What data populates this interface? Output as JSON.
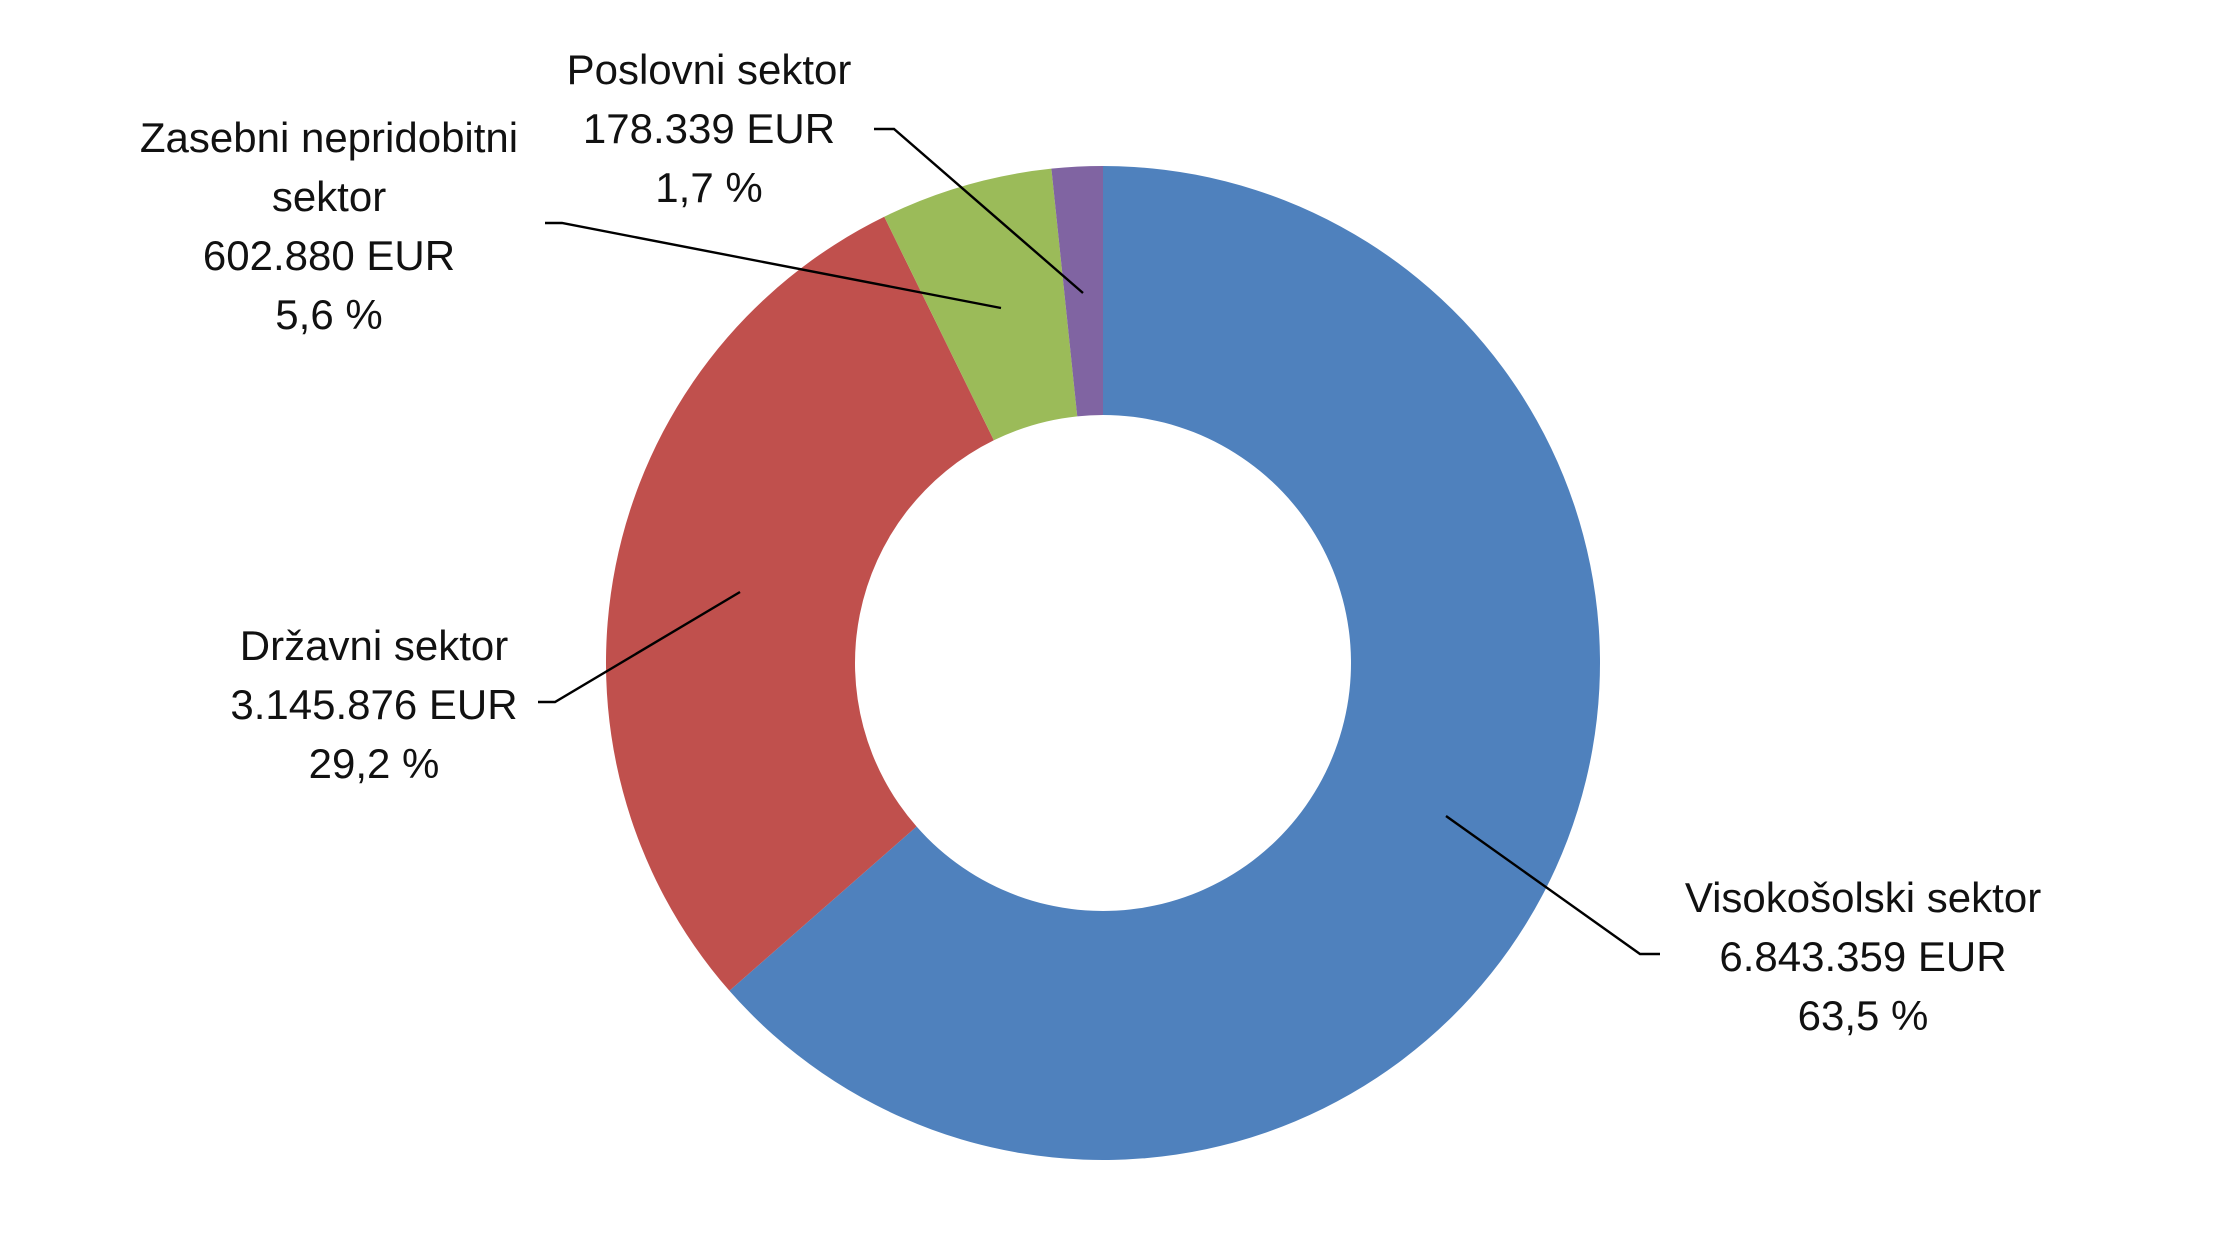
{
  "chart_data": {
    "type": "pie",
    "variant": "doughnut",
    "title": "",
    "legend": "none",
    "colors": {
      "visokosolski": "#4F81BD",
      "drzavni": "#C0504D",
      "zasebni": "#9BBB59",
      "poslovni": "#8064A2"
    },
    "slices": [
      {
        "key": "visokosolski",
        "lines": [
          "Visokošolski sektor"
        ],
        "value": 6843359,
        "value_label": "6.843.359 EUR",
        "percent_label": "63,5 %"
      },
      {
        "key": "drzavni",
        "lines": [
          "Državni sektor"
        ],
        "value": 3145876,
        "value_label": "3.145.876 EUR",
        "percent_label": "29,2 %"
      },
      {
        "key": "zasebni",
        "lines": [
          "Zasebni nepridobitni",
          "sektor"
        ],
        "value": 602880,
        "value_label": "602.880 EUR",
        "percent_label": "5,6 %"
      },
      {
        "key": "poslovni",
        "lines": [
          "Poslovni sektor"
        ],
        "value": 178339,
        "value_label": "178.339 EUR",
        "percent_label": "1,7 %"
      }
    ]
  }
}
